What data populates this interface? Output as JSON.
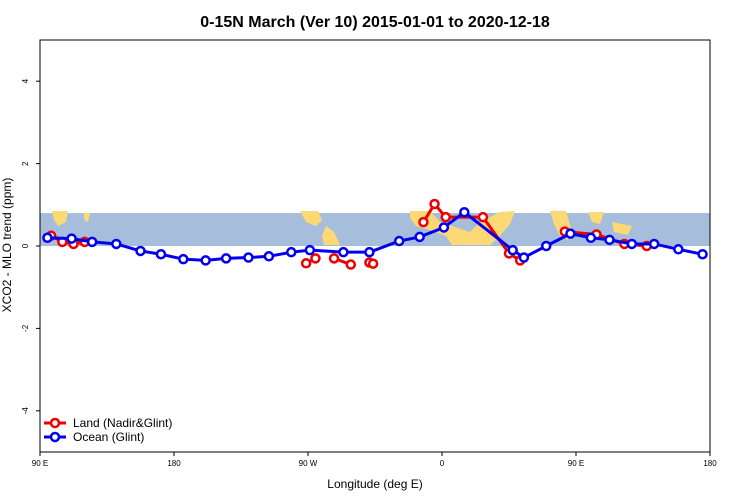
{
  "chart_data": {
    "type": "line",
    "title": "0-15N March (Ver 10)   2015-01-01 to 2020-12-18",
    "xlabel": "Longitude (deg E)",
    "ylabel": "XCO2 - MLO trend (ppm)",
    "xlim": [
      -180,
      180
    ],
    "ylim": [
      -5,
      5
    ],
    "x_ticks": [
      {
        "value": -180,
        "label": "90 E"
      },
      {
        "value": -108,
        "label": "180"
      },
      {
        "value": -36,
        "label": "90 W"
      },
      {
        "value": 36,
        "label": "0"
      },
      {
        "value": 108,
        "label": "90 E"
      },
      {
        "value": 180,
        "label": "180"
      }
    ],
    "y_ticks": [
      -4,
      -2,
      0,
      2,
      4
    ],
    "band": {
      "y_min": 0,
      "y_max": 0.8,
      "ocean_color": "#a6bddb",
      "land_color": "#fdd976"
    },
    "legend_position": "bottom-left",
    "series": [
      {
        "name": "Land (Nadir&Glint)",
        "color": "#ee0000",
        "segments": [
          {
            "x": [
              -174,
              -168,
              -162,
              -156
            ],
            "y": [
              0.25,
              0.1,
              0.05,
              0.1
            ]
          },
          {
            "x": [
              -37,
              -32
            ],
            "y": [
              -0.42,
              -0.3
            ]
          },
          {
            "x": [
              -22,
              -13
            ],
            "y": [
              -0.3,
              -0.45
            ]
          },
          {
            "x": [
              -3,
              -1
            ],
            "y": [
              -0.4,
              -0.43
            ]
          }
        ]
      },
      {
        "name": "Land (Nadir&Glint)",
        "color": "#ee0000",
        "segments": [
          {
            "x": [
              26,
              32,
              38,
              58,
              72,
              78
            ],
            "y": [
              0.58,
              1.02,
              0.7,
              0.7,
              -0.18,
              -0.35
            ]
          },
          {
            "x": [
              102,
              119,
              134,
              146
            ],
            "y": [
              0.35,
              0.28,
              0.05,
              0.0
            ]
          }
        ]
      },
      {
        "name": "Ocean (Glint)",
        "color": "#0000ee",
        "segments": [
          {
            "x": [
              -176,
              -163,
              -152,
              -139,
              -126,
              -115,
              -103,
              -91,
              -80,
              -68,
              -57,
              -45,
              -35,
              -17,
              -3,
              13,
              24,
              37,
              48,
              74,
              80,
              92,
              105,
              116,
              126,
              138,
              150,
              163,
              176
            ],
            "y": [
              0.2,
              0.18,
              0.1,
              0.05,
              -0.12,
              -0.2,
              -0.32,
              -0.35,
              -0.3,
              -0.28,
              -0.25,
              -0.15,
              -0.1,
              -0.15,
              -0.15,
              0.12,
              0.22,
              0.45,
              0.82,
              -0.1,
              -0.28,
              0.0,
              0.3,
              0.2,
              0.15,
              0.05,
              0.05,
              -0.08,
              -0.2
            ]
          }
        ]
      }
    ],
    "legend": [
      {
        "name": "Land (Nadir&Glint)",
        "color": "#ee0000"
      },
      {
        "name": "Ocean (Glint)",
        "color": "#0000ee"
      }
    ]
  }
}
